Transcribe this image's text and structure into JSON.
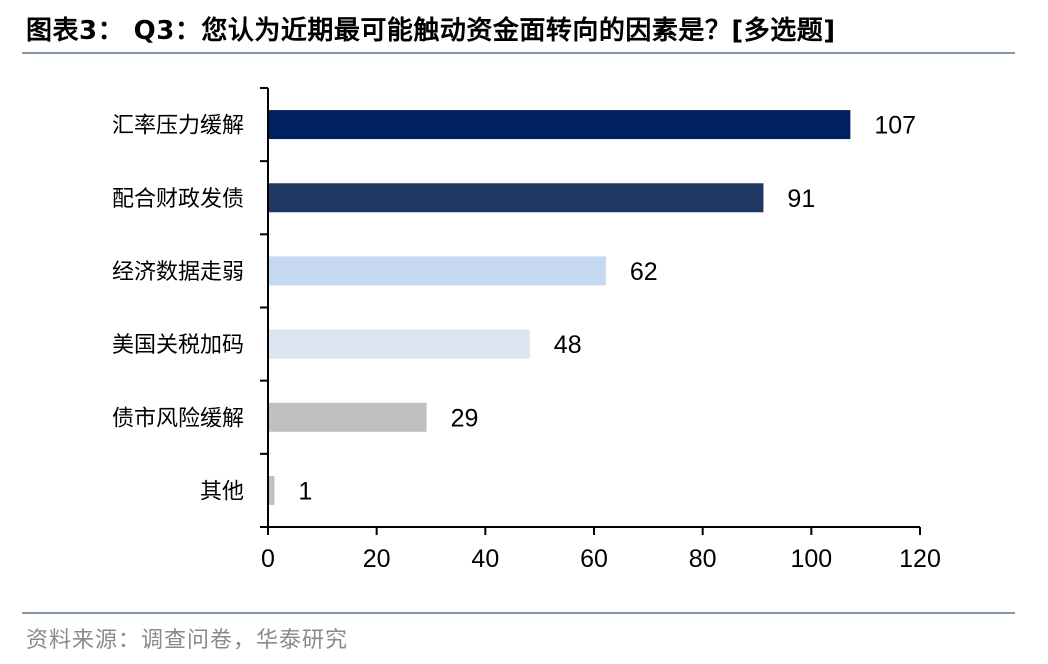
{
  "header": {
    "title": "图表3： Q3：您认为近期最可能触动资金面转向的因素是？[多选题]"
  },
  "footer": {
    "source": "资料来源：调查问卷，华泰研究"
  },
  "chart_data": {
    "type": "bar",
    "orientation": "horizontal",
    "categories": [
      "汇率压力缓解",
      "配合财政发债",
      "经济数据走弱",
      "美国关税加码",
      "债市风险缓解",
      "其他"
    ],
    "values": [
      107,
      91,
      62,
      48,
      29,
      1
    ],
    "bar_colors": [
      "#002060",
      "#1f3864",
      "#c5d8f1",
      "#dce6f2",
      "#bfbfbf",
      "#bfbfbf"
    ],
    "xlim": [
      0,
      120
    ],
    "xticks": [
      0,
      20,
      40,
      60,
      80,
      100,
      120
    ],
    "grid": false,
    "legend": "none",
    "data_labels": true
  }
}
